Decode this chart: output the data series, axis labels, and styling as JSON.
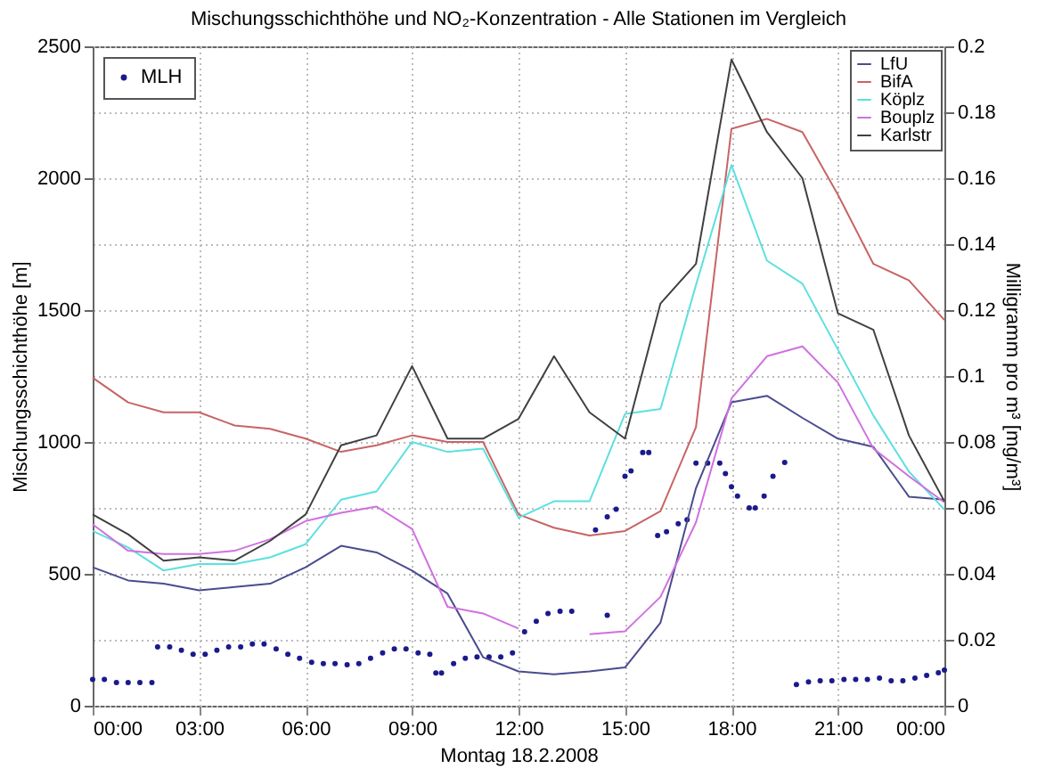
{
  "chart_data": {
    "type": "line",
    "title": "Mischungsschichthöhe und NO₂-Konzentration - Alle Stationen im Vergleich",
    "xlabel": "Montag 18.2.2008",
    "ylabel": "Mischungsschichthöhe [m]",
    "y2label": "Milligramm pro m³ [mg/m³]",
    "x": [
      0,
      1,
      2,
      3,
      4,
      5,
      6,
      7,
      8,
      9,
      10,
      11,
      12,
      13,
      14,
      15,
      16,
      17,
      18,
      19,
      20,
      21,
      22,
      23,
      24
    ],
    "series": [
      {
        "name": "MLH",
        "type": "scatter",
        "color": "#1a1a8c",
        "axis": "y",
        "x": [
          0,
          0.33,
          0.67,
          1,
          1.33,
          1.67,
          1.83,
          2.17,
          2.5,
          2.83,
          3.17,
          3.5,
          3.83,
          4.17,
          4.5,
          4.83,
          5.17,
          5.5,
          5.83,
          6.17,
          6.5,
          6.83,
          7.17,
          7.5,
          7.83,
          8.17,
          8.5,
          8.83,
          9.17,
          9.5,
          9.67,
          9.83,
          10.17,
          10.5,
          10.83,
          11.17,
          11.5,
          11.83,
          12.17,
          12.5,
          12.83,
          13.17,
          13.5,
          14.5,
          14.17,
          14.5,
          14.75,
          15,
          15.17,
          15.5,
          15.67,
          15.92,
          16.17,
          16.5,
          16.75,
          17,
          17.33,
          17.67,
          17.83,
          18,
          18.17,
          18.5,
          18.67,
          18.92,
          19.17,
          19.5,
          19.83,
          20.17,
          20.5,
          20.83,
          21.17,
          21.5,
          21.83,
          22.17,
          22.5,
          22.83,
          23.17,
          23.5,
          23.83,
          24
        ],
        "values": [
          100,
          100,
          88,
          88,
          88,
          88,
          223,
          223,
          210,
          195,
          195,
          210,
          223,
          223,
          234,
          234,
          215,
          195,
          180,
          165,
          160,
          160,
          155,
          160,
          180,
          200,
          215,
          215,
          200,
          195,
          124,
          124,
          160,
          180,
          185,
          185,
          185,
          200,
          280,
          320,
          350,
          358,
          358,
          343,
          666,
          716,
          745,
          870,
          890,
          960,
          960,
          645,
          660,
          690,
          705,
          920,
          920,
          920,
          880,
          830,
          795,
          750,
          750,
          795,
          870,
          922,
          80,
          90,
          95,
          95,
          100,
          100,
          100,
          105,
          95,
          95,
          105,
          115,
          125,
          135
        ]
      },
      {
        "name": "LfU",
        "color": "#4b4b8f",
        "axis": "y2",
        "values": [
          0.042,
          0.038,
          0.037,
          0.035,
          0.036,
          0.037,
          0.042,
          0.0485,
          0.0465,
          0.041,
          0.034,
          0.0147,
          0.0104,
          0.0095,
          0.0104,
          0.0116,
          0.0252,
          0.066,
          0.092,
          0.094,
          0.0873,
          0.081,
          0.0785,
          0.0634,
          0.0625
        ]
      },
      {
        "name": "BifA",
        "color": "#c86464",
        "axis": "y2",
        "values": [
          0.0995,
          0.092,
          0.089,
          0.089,
          0.085,
          0.084,
          0.081,
          0.077,
          0.079,
          0.082,
          0.08,
          0.08,
          0.058,
          0.054,
          0.0516,
          0.053,
          0.059,
          0.0845,
          0.175,
          0.178,
          0.174,
          0.155,
          0.134,
          0.129,
          0.117
        ]
      },
      {
        "name": "Köplz",
        "color": "#5ce0e0",
        "axis": "y2",
        "values": [
          0.053,
          0.048,
          0.041,
          0.043,
          0.043,
          0.045,
          0.049,
          0.0625,
          0.065,
          0.08,
          0.077,
          0.078,
          0.057,
          0.062,
          0.062,
          0.0885,
          0.09,
          0.1276,
          0.164,
          0.135,
          0.128,
          0.108,
          0.088,
          0.071,
          0.0595
        ]
      },
      {
        "name": "Bouplz",
        "color": "#d070e0",
        "axis": "y2",
        "values": [
          0.055,
          0.047,
          0.046,
          0.046,
          0.047,
          0.0505,
          0.056,
          0.0585,
          0.0604,
          0.0536,
          0.03,
          0.028,
          0.0234,
          null,
          0.0217,
          0.0226,
          0.033,
          0.0556,
          0.0932,
          0.106,
          0.109,
          0.098,
          0.078,
          0.0696,
          0.0617
        ]
      },
      {
        "name": "Karlstr",
        "color": "#404040",
        "axis": "y2",
        "values": [
          0.058,
          0.052,
          0.044,
          0.045,
          0.044,
          0.05,
          0.058,
          0.079,
          0.082,
          0.103,
          0.081,
          0.081,
          0.087,
          0.106,
          0.089,
          0.081,
          0.122,
          0.134,
          0.196,
          0.174,
          0.16,
          0.119,
          0.114,
          0.082,
          0.062
        ]
      }
    ],
    "xlim": [
      0,
      24
    ],
    "xticks": [
      {
        "value": 0,
        "label": "00:00"
      },
      {
        "value": 3,
        "label": "03:00"
      },
      {
        "value": 6,
        "label": "06:00"
      },
      {
        "value": 9,
        "label": "09:00"
      },
      {
        "value": 12,
        "label": "12:00"
      },
      {
        "value": 15,
        "label": "15:00"
      },
      {
        "value": 18,
        "label": "18:00"
      },
      {
        "value": 21,
        "label": "21:00"
      },
      {
        "value": 24,
        "label": "00:00"
      }
    ],
    "ylim": [
      0,
      2500
    ],
    "yticks": [
      0,
      500,
      1000,
      1500,
      2000,
      2500
    ],
    "y2lim": [
      0,
      0.2
    ],
    "y2ticks": [
      0,
      0.02,
      0.04,
      0.06,
      0.08,
      0.1,
      0.12,
      0.14,
      0.16,
      0.18,
      0.2
    ],
    "grid": true,
    "legend": "top right",
    "line_style": "solid"
  }
}
